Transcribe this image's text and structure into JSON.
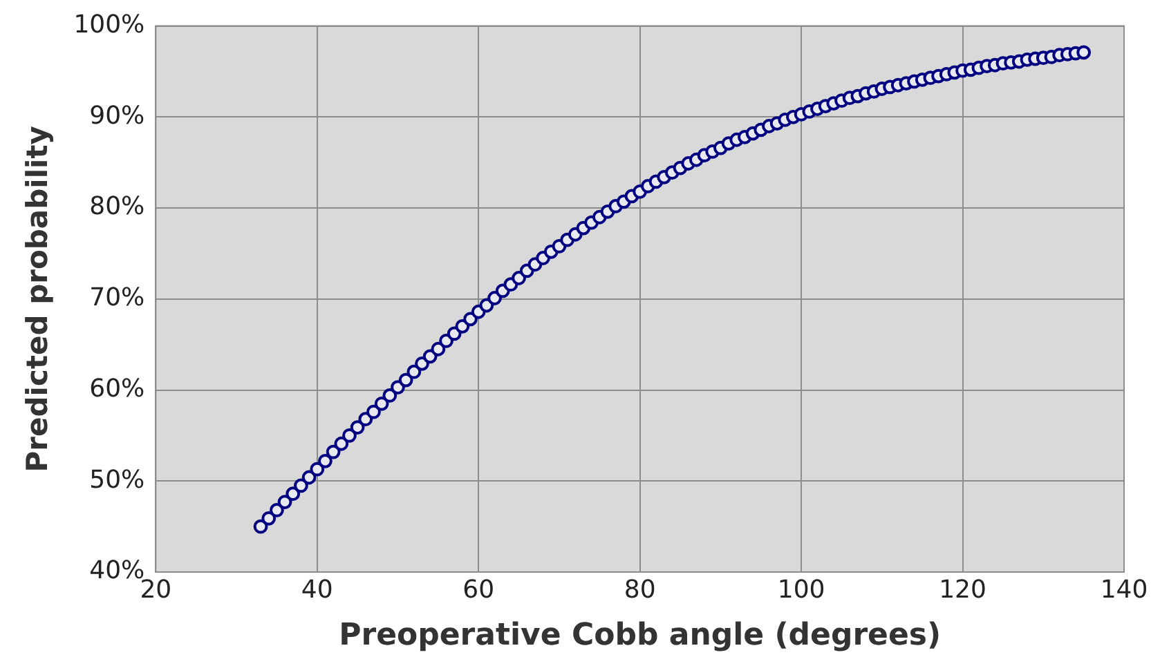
{
  "chart_data": {
    "type": "scatter",
    "xlabel": "Preoperative Cobb angle (degrees)",
    "ylabel": "Predicted probability",
    "x": [
      33,
      34,
      35,
      36,
      37,
      38,
      39,
      40,
      41,
      42,
      43,
      44,
      45,
      46,
      47,
      48,
      49,
      50,
      51,
      52,
      53,
      54,
      55,
      56,
      57,
      58,
      59,
      60,
      61,
      62,
      63,
      64,
      65,
      66,
      67,
      68,
      69,
      70,
      71,
      72,
      73,
      74,
      75,
      76,
      77,
      78,
      79,
      80,
      81,
      82,
      83,
      84,
      85,
      86,
      87,
      88,
      89,
      90,
      91,
      92,
      93,
      94,
      95,
      96,
      97,
      98,
      99,
      100,
      101,
      102,
      103,
      104,
      105,
      106,
      107,
      108,
      109,
      110,
      111,
      112,
      113,
      114,
      115,
      116,
      117,
      118,
      119,
      120,
      121,
      122,
      123,
      124,
      125,
      126,
      127,
      128,
      129,
      130,
      131,
      132,
      133,
      134,
      135
    ],
    "series": [
      {
        "color": "#000080",
        "values": [
          45.0,
          45.9,
          46.8,
          47.7,
          48.6,
          49.5,
          50.4,
          51.3,
          52.2,
          53.2,
          54.1,
          55.0,
          55.9,
          56.8,
          57.6,
          58.5,
          59.4,
          60.3,
          61.1,
          62.0,
          62.9,
          63.7,
          64.5,
          65.4,
          66.2,
          67.0,
          67.8,
          68.6,
          69.3,
          70.1,
          70.9,
          71.6,
          72.3,
          73.1,
          73.8,
          74.5,
          75.2,
          75.8,
          76.5,
          77.1,
          77.8,
          78.4,
          79.0,
          79.6,
          80.2,
          80.7,
          81.3,
          81.8,
          82.4,
          82.9,
          83.4,
          83.9,
          84.4,
          84.9,
          85.3,
          85.8,
          86.2,
          86.6,
          87.1,
          87.5,
          87.8,
          88.2,
          88.6,
          89.0,
          89.3,
          89.7,
          90.0,
          90.3,
          90.6,
          90.9,
          91.2,
          91.5,
          91.8,
          92.1,
          92.3,
          92.6,
          92.8,
          93.1,
          93.3,
          93.5,
          93.7,
          93.9,
          94.1,
          94.3,
          94.5,
          94.7,
          94.9,
          95.1,
          95.2,
          95.4,
          95.6,
          95.7,
          95.9,
          96.0,
          96.1,
          96.3,
          96.4,
          96.5,
          96.6,
          96.8,
          96.9,
          97.0,
          97.1
        ]
      }
    ],
    "xlim": [
      20,
      140
    ],
    "xticks": [
      20,
      40,
      60,
      80,
      100,
      120,
      140
    ],
    "ylim": [
      40,
      100
    ],
    "yticks": [
      {
        "value": 40,
        "label": "40%"
      },
      {
        "value": 50,
        "label": "50%"
      },
      {
        "value": 60,
        "label": "60%"
      },
      {
        "value": 70,
        "label": "70%"
      },
      {
        "value": 80,
        "label": "80%"
      },
      {
        "value": 90,
        "label": "90%"
      },
      {
        "value": 100,
        "label": "100%"
      }
    ],
    "grid": true,
    "legend": false,
    "marker": "circle"
  }
}
